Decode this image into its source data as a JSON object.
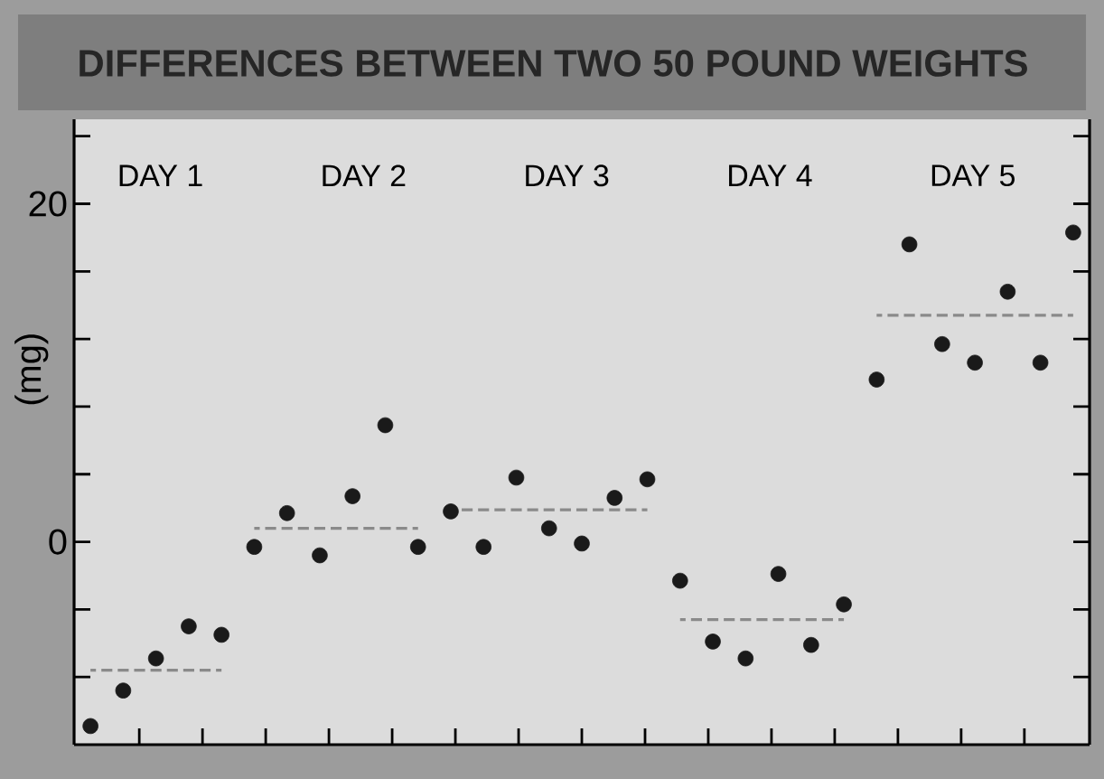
{
  "chart_data": {
    "type": "scatter",
    "title": "DIFFERENCES BETWEEN TWO 50 POUND WEIGHTS",
    "ylabel": "(mg)",
    "categories": [
      null,
      null,
      null,
      null,
      null,
      null,
      null,
      null,
      null,
      null,
      null,
      null,
      null,
      null,
      null,
      null,
      null,
      null,
      null,
      null,
      null,
      null,
      null,
      null,
      null,
      null,
      null,
      null,
      null,
      null,
      null
    ],
    "ylim": [
      -12,
      25
    ],
    "yticks": [
      {
        "value": -8,
        "label": null
      },
      {
        "value": -4,
        "label": null
      },
      0,
      {
        "value": 4,
        "label": null
      },
      {
        "value": 8,
        "label": null
      },
      {
        "value": 12,
        "label": null
      },
      {
        "value": 16,
        "label": null
      },
      20,
      {
        "value": 24,
        "label": null
      }
    ],
    "tick_labels": "y",
    "series": [
      {
        "color": "#1a1a1a",
        "marker": "circle",
        "values": [
          -10.9,
          -8.8,
          -6.9,
          -5.0,
          -5.5,
          -0.3,
          1.7,
          -0.8,
          2.7,
          6.9,
          -0.3,
          1.8,
          -0.3,
          3.8,
          0.8,
          -0.1,
          2.6,
          3.7,
          -2.3,
          -5.9,
          -6.9,
          -1.9,
          -6.1,
          -3.7,
          9.6,
          17.6,
          11.7,
          10.6,
          14.8,
          10.6,
          18.3
        ]
      },
      {
        "type": "line",
        "color": "#8a8a8a",
        "line_style": "dashed",
        "marker": "none",
        "values": [
          -7.6,
          -7.6,
          -7.6,
          -7.6,
          -7.6,
          null,
          null,
          null,
          null,
          null,
          null,
          null,
          null,
          null,
          null,
          null,
          null,
          null,
          null,
          null,
          null,
          null,
          null,
          null,
          null,
          null,
          null,
          null,
          null,
          null,
          null
        ]
      },
      {
        "type": "line",
        "color": "#8a8a8a",
        "line_style": "dashed",
        "marker": "none",
        "values": [
          null,
          null,
          null,
          null,
          null,
          0.8,
          0.8,
          0.8,
          0.8,
          0.8,
          0.8,
          null,
          null,
          null,
          null,
          null,
          null,
          null,
          null,
          null,
          null,
          null,
          null,
          null,
          null,
          null,
          null,
          null,
          null,
          null,
          null
        ]
      },
      {
        "type": "line",
        "color": "#8a8a8a",
        "line_style": "dashed",
        "marker": "none",
        "values": [
          null,
          null,
          null,
          null,
          null,
          null,
          null,
          null,
          null,
          null,
          null,
          1.9,
          1.9,
          1.9,
          1.9,
          1.9,
          1.9,
          1.9,
          null,
          null,
          null,
          null,
          null,
          null,
          null,
          null,
          null,
          null,
          null,
          null,
          null
        ]
      },
      {
        "type": "line",
        "color": "#8a8a8a",
        "line_style": "dashed",
        "marker": "none",
        "values": [
          null,
          null,
          null,
          null,
          null,
          null,
          null,
          null,
          null,
          null,
          null,
          null,
          null,
          null,
          null,
          null,
          null,
          null,
          -4.6,
          -4.6,
          -4.6,
          -4.6,
          -4.6,
          -4.6,
          null,
          null,
          null,
          null,
          null,
          null,
          null
        ]
      },
      {
        "type": "line",
        "color": "#8a8a8a",
        "line_style": "dashed",
        "marker": "none",
        "values": [
          null,
          null,
          null,
          null,
          null,
          null,
          null,
          null,
          null,
          null,
          null,
          null,
          null,
          null,
          null,
          null,
          null,
          null,
          null,
          null,
          null,
          null,
          null,
          null,
          13.4,
          13.4,
          13.4,
          13.4,
          13.4,
          13.4,
          13.4
        ]
      }
    ],
    "annotations": [
      "DAY 1",
      "DAY 2",
      "DAY 3",
      "DAY 4",
      "DAY 5"
    ]
  }
}
